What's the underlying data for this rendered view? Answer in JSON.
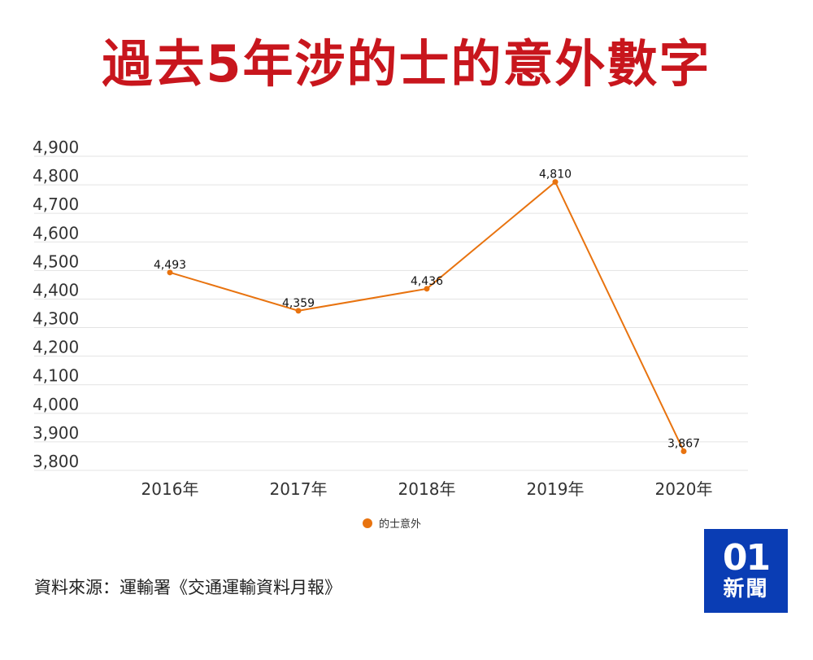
{
  "title": "過去5年涉的士的意外數字",
  "source": "資料來源：運輸署《交通運輸資料月報》",
  "logo": {
    "mark": "01",
    "text": "新聞"
  },
  "colors": {
    "title": "#c8161d",
    "series": "#e8730f",
    "logo": "#0a3db4",
    "grid": "#e3e3e3"
  },
  "chart_data": {
    "type": "line",
    "categories": [
      "2016年",
      "2017年",
      "2018年",
      "2019年",
      "2020年"
    ],
    "series": [
      {
        "name": "的士意外",
        "values": [
          4493,
          4359,
          4436,
          4810,
          3867
        ]
      }
    ],
    "data_labels": [
      "4,493",
      "4,359",
      "4,436",
      "4,810",
      "3,867"
    ],
    "y_ticks": [
      "3,800",
      "3,900",
      "4,000",
      "4,100",
      "4,200",
      "4,300",
      "4,400",
      "4,500",
      "4,600",
      "4,700",
      "4,800",
      "4,900"
    ],
    "ylim": [
      3800,
      4900
    ],
    "grid": true,
    "legend": "bottom-center"
  }
}
